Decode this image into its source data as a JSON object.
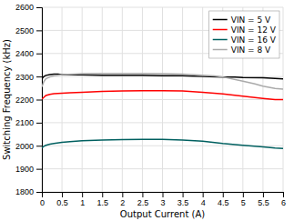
{
  "chart_data": {
    "type": "line",
    "xlabel": "Output Current (A)",
    "ylabel": "Switching Frequency (kHz)",
    "xlim": [
      0,
      6
    ],
    "ylim": [
      1800,
      2600
    ],
    "xticks": [
      0,
      0.5,
      1,
      1.5,
      2,
      2.5,
      3,
      3.5,
      4,
      4.5,
      5,
      5.5,
      6
    ],
    "yticks": [
      1800,
      1900,
      2000,
      2100,
      2200,
      2300,
      2400,
      2500,
      2600
    ],
    "grid": true,
    "legend": "upper right",
    "series": [
      {
        "name": "VIN = 5 V",
        "color": "#000000",
        "x": [
          0.0,
          0.05,
          0.1,
          0.2,
          0.3,
          0.4,
          0.5,
          0.6,
          0.8,
          1.0,
          1.5,
          2.0,
          2.5,
          3.0,
          3.5,
          4.0,
          4.5,
          4.8,
          5.0,
          5.5,
          5.8,
          6.0
        ],
        "values": [
          2290,
          2300,
          2305,
          2308,
          2310,
          2310,
          2308,
          2308,
          2307,
          2307,
          2305,
          2305,
          2305,
          2303,
          2303,
          2300,
          2298,
          2298,
          2296,
          2295,
          2292,
          2290
        ]
      },
      {
        "name": "VIN = 12 V",
        "color": "#ff0000",
        "x": [
          0.0,
          0.05,
          0.1,
          0.2,
          0.3,
          0.5,
          0.7,
          1.0,
          1.5,
          2.0,
          2.5,
          3.0,
          3.5,
          4.0,
          4.5,
          5.0,
          5.5,
          5.8,
          6.0
        ],
        "values": [
          2202,
          2210,
          2218,
          2223,
          2226,
          2228,
          2230,
          2232,
          2235,
          2237,
          2238,
          2238,
          2237,
          2232,
          2225,
          2215,
          2205,
          2200,
          2200
        ]
      },
      {
        "name": "VIN = 16 V",
        "color": "#006060",
        "x": [
          0.0,
          0.05,
          0.1,
          0.2,
          0.3,
          0.5,
          0.7,
          1.0,
          1.5,
          2.0,
          2.5,
          3.0,
          3.5,
          4.0,
          4.5,
          5.0,
          5.5,
          5.8,
          6.0
        ],
        "values": [
          1990,
          1998,
          2002,
          2007,
          2010,
          2015,
          2018,
          2022,
          2025,
          2027,
          2028,
          2028,
          2025,
          2020,
          2010,
          2002,
          1995,
          1990,
          1988
        ]
      },
      {
        "name": "VIN = 8 V",
        "color": "#aaaaaa",
        "x": [
          0.0,
          0.05,
          0.1,
          0.2,
          0.3,
          0.5,
          0.8,
          1.0,
          1.5,
          2.0,
          2.5,
          3.0,
          3.5,
          4.0,
          4.3,
          4.5,
          5.0,
          5.3,
          5.5,
          5.8,
          6.0
        ],
        "values": [
          2255,
          2278,
          2290,
          2298,
          2303,
          2308,
          2310,
          2312,
          2313,
          2313,
          2313,
          2312,
          2310,
          2305,
          2302,
          2298,
          2280,
          2268,
          2258,
          2248,
          2245
        ]
      }
    ]
  }
}
